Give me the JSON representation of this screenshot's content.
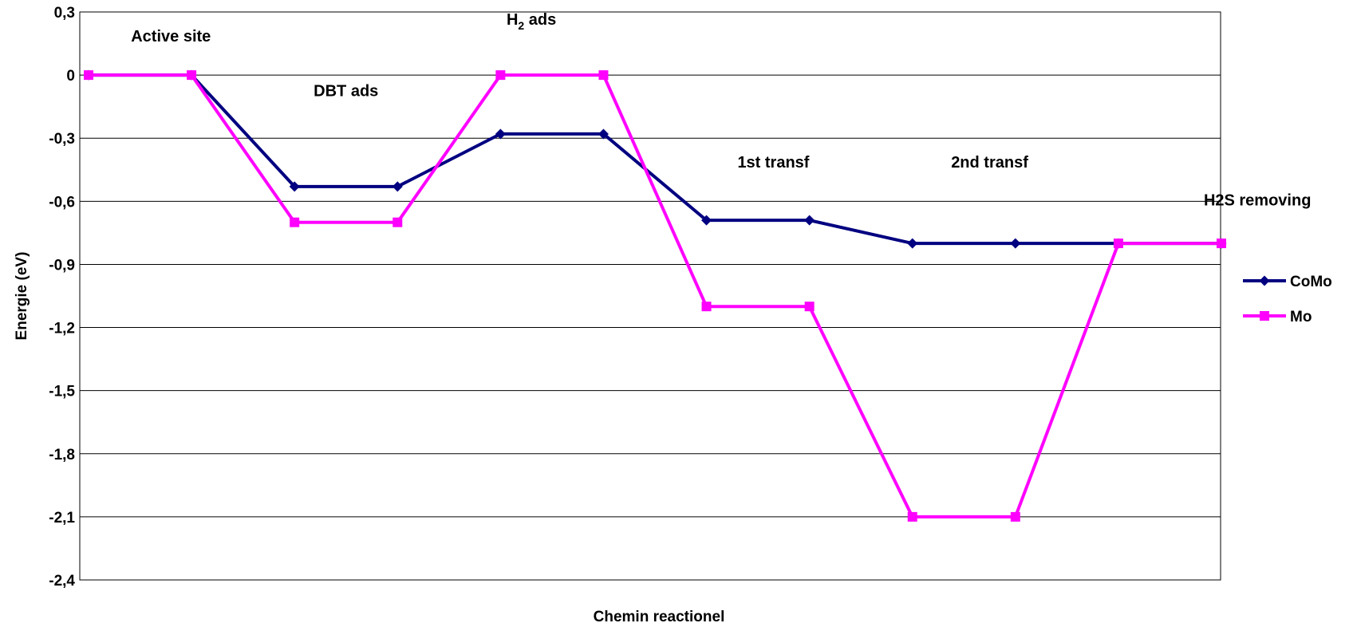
{
  "chart_data": {
    "type": "line",
    "title": "",
    "xlabel": "Chemin reactionel",
    "ylabel": "Energie (eV)",
    "ylim": [
      -2.4,
      0.3
    ],
    "yticks": [
      0.3,
      0,
      -0.3,
      -0.6,
      -0.9,
      -1.2,
      -1.5,
      -1.8,
      -2.1,
      -2.4
    ],
    "ytick_labels": [
      "0,3",
      "0",
      "-0,3",
      "-0,6",
      "-0,9",
      "-1,2",
      "-1,5",
      "-1,8",
      "-2,1",
      "-2,4"
    ],
    "grid": "horizontal",
    "legend_position": "right",
    "x": [
      1,
      2,
      3,
      4,
      5,
      6,
      7,
      8,
      9,
      10,
      11,
      12
    ],
    "series": [
      {
        "name": "CoMo",
        "color": "#000080",
        "marker": "diamond",
        "values": [
          0,
          0,
          -0.53,
          -0.53,
          -0.28,
          -0.28,
          -0.69,
          -0.69,
          -0.8,
          -0.8,
          -0.8,
          -0.8
        ]
      },
      {
        "name": "Mo",
        "color": "#FF00FF",
        "marker": "square",
        "values": [
          0,
          0,
          -0.7,
          -0.7,
          0,
          0,
          -1.1,
          -1.1,
          -2.1,
          -2.1,
          -0.8,
          -0.8
        ]
      }
    ],
    "annotations": [
      {
        "text": "Active site",
        "x": 1.8,
        "y": 0.16
      },
      {
        "text": "DBT ads",
        "x": 3.5,
        "y": -0.1
      },
      {
        "text": "H",
        "sub": "2",
        "suffix": " ads",
        "x": 5.3,
        "y": 0.24
      },
      {
        "text": "1st transf",
        "x": 7.65,
        "y": -0.44
      },
      {
        "text": "2nd transf",
        "x": 9.75,
        "y": -0.44
      },
      {
        "text": "H2S removing",
        "x": 12.35,
        "y": -0.62
      }
    ]
  }
}
